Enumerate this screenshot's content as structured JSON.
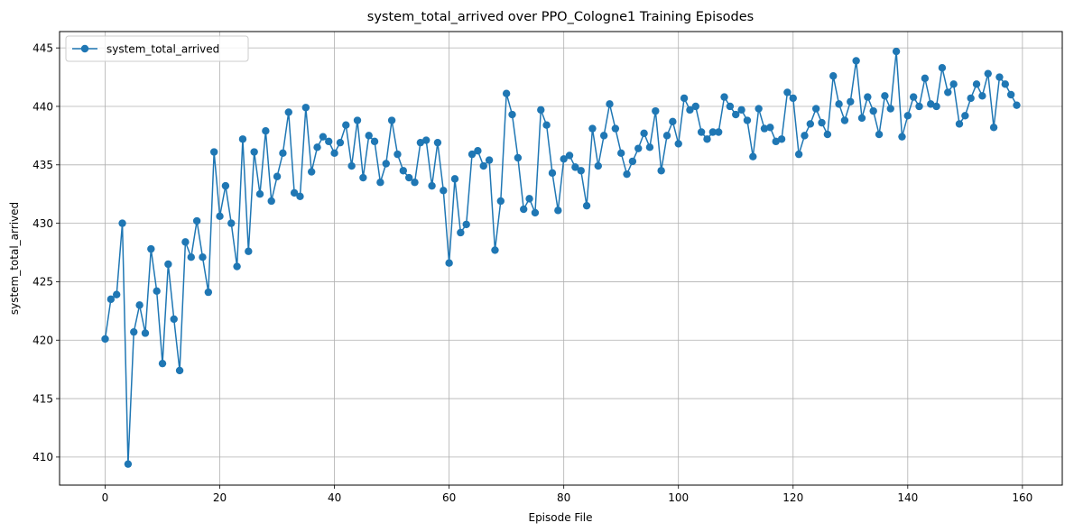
{
  "chart_data": {
    "type": "line",
    "title": "system_total_arrived over PPO_Cologne1 Training Episodes",
    "xlabel": "Episode File",
    "ylabel": "system_total_arrived",
    "xlim": [
      -7.95,
      166.95
    ],
    "ylim": [
      407.6,
      446.4
    ],
    "xticks": [
      0,
      20,
      40,
      60,
      80,
      100,
      120,
      140,
      160
    ],
    "yticks": [
      410,
      415,
      420,
      425,
      430,
      435,
      440,
      445
    ],
    "grid": true,
    "legend_position": "upper-left",
    "series": [
      {
        "name": "system_total_arrived",
        "color": "#1f77b4",
        "marker": "circle",
        "x_start": 0,
        "values": [
          420.1,
          423.5,
          423.9,
          430.0,
          409.4,
          420.7,
          423.0,
          420.6,
          427.8,
          424.2,
          418.0,
          426.5,
          421.8,
          417.4,
          428.4,
          427.1,
          430.2,
          427.1,
          424.1,
          436.1,
          430.6,
          433.2,
          430.0,
          426.3,
          437.2,
          427.6,
          436.1,
          432.5,
          437.9,
          431.9,
          434.0,
          436.0,
          439.5,
          432.6,
          432.3,
          439.9,
          434.4,
          436.5,
          437.4,
          437.0,
          436.0,
          436.9,
          438.4,
          434.9,
          438.8,
          433.9,
          437.5,
          437.0,
          433.5,
          435.1,
          438.8,
          435.9,
          434.5,
          433.9,
          433.5,
          436.9,
          437.1,
          433.2,
          436.9,
          432.8,
          426.6,
          433.8,
          429.2,
          429.9,
          435.9,
          436.2,
          434.9,
          435.4,
          427.7,
          431.9,
          441.1,
          439.3,
          435.6,
          431.2,
          432.1,
          430.9,
          439.7,
          438.4,
          434.3,
          431.1,
          435.5,
          435.8,
          434.8,
          434.5,
          431.5,
          438.1,
          434.9,
          437.5,
          440.2,
          438.1,
          436.0,
          434.2,
          435.3,
          436.4,
          437.7,
          436.5,
          439.6,
          434.5,
          437.5,
          438.7,
          436.8,
          440.7,
          439.7,
          440.0,
          437.8,
          437.2,
          437.8,
          437.8,
          440.8,
          440.0,
          439.3,
          439.7,
          438.8,
          435.7,
          439.8,
          438.1,
          438.2,
          437.0,
          437.2,
          441.2,
          440.7,
          435.9,
          437.5,
          438.5,
          439.8,
          438.6,
          437.6,
          442.6,
          440.2,
          438.8,
          440.4,
          443.9,
          439.0,
          440.8,
          439.6,
          437.6,
          440.9,
          439.8,
          444.7,
          437.4,
          439.2,
          440.8,
          440.0,
          442.4,
          440.2,
          440.0,
          443.3,
          441.2,
          441.9,
          438.5,
          439.2,
          440.7,
          441.9,
          440.9,
          442.8,
          438.2,
          442.5,
          441.9,
          441.0,
          440.1
        ]
      }
    ]
  }
}
